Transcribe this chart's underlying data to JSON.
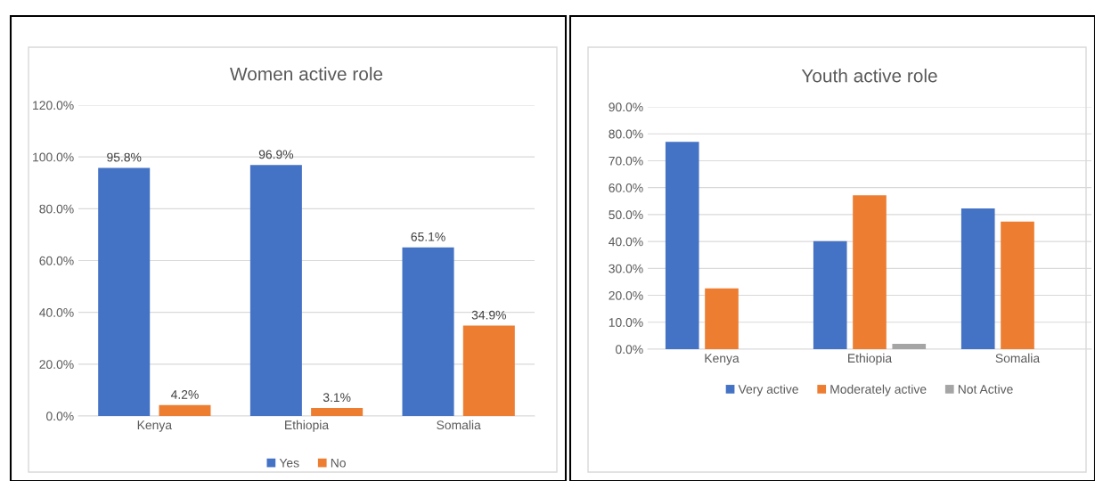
{
  "chart_data": [
    {
      "type": "bar",
      "title": "Women active role",
      "categories": [
        "Kenya",
        "Ethiopia",
        "Somalia"
      ],
      "series": [
        {
          "name": "Yes",
          "color": "#4472c4",
          "values": [
            95.8,
            96.9,
            65.1
          ],
          "value_labels": [
            "95.8%",
            "96.9%",
            "65.1%"
          ]
        },
        {
          "name": "No",
          "color": "#ed7d31",
          "values": [
            4.2,
            3.1,
            34.9
          ],
          "value_labels": [
            "4.2%",
            "3.1%",
            "34.9%"
          ]
        }
      ],
      "ylim": [
        0,
        120
      ],
      "yticks": [
        {
          "value": 0,
          "label": "0.0%"
        },
        {
          "value": 20,
          "label": "20.0%"
        },
        {
          "value": 40,
          "label": "40.0%"
        },
        {
          "value": 60,
          "label": "60.0%"
        },
        {
          "value": 80,
          "label": "80.0%"
        },
        {
          "value": 100,
          "label": "100.0%"
        },
        {
          "value": 120,
          "label": "120.0%"
        }
      ],
      "grid": "y",
      "legend": "bottom"
    },
    {
      "type": "bar",
      "title": "Youth active role",
      "categories": [
        "Kenya",
        "Ethiopia",
        "Somalia"
      ],
      "series": [
        {
          "name": "Very active",
          "color": "#4472c4",
          "values": [
            77.0,
            40.1,
            52.3
          ]
        },
        {
          "name": "Moderately active",
          "color": "#ed7d31",
          "values": [
            22.6,
            57.2,
            47.4
          ]
        },
        {
          "name": "Not Active",
          "color": "#a5a5a5",
          "values": [
            0,
            2.0,
            0
          ]
        }
      ],
      "ylim": [
        0,
        90
      ],
      "yticks": [
        {
          "value": 0,
          "label": "0.0%"
        },
        {
          "value": 10,
          "label": "10.0%"
        },
        {
          "value": 20,
          "label": "20.0%"
        },
        {
          "value": 30,
          "label": "30.0%"
        },
        {
          "value": 40,
          "label": "40.0%"
        },
        {
          "value": 50,
          "label": "50.0%"
        },
        {
          "value": 60,
          "label": "60.0%"
        },
        {
          "value": 70,
          "label": "70.0%"
        },
        {
          "value": 80,
          "label": "80.0%"
        },
        {
          "value": 90,
          "label": "90.0%"
        }
      ],
      "grid": "y",
      "legend": "bottom"
    }
  ]
}
